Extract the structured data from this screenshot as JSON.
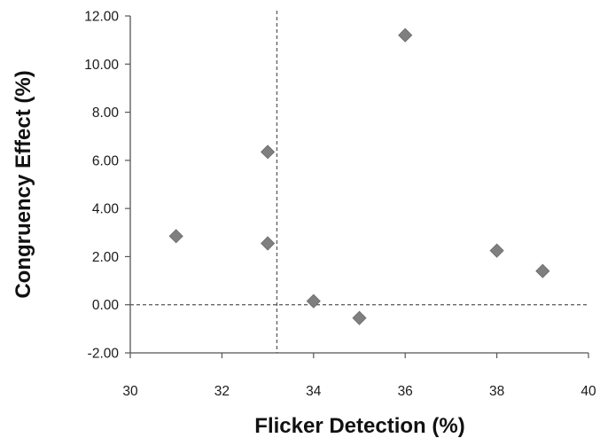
{
  "chart_data": {
    "type": "scatter",
    "xlabel": "Flicker Detection (%)",
    "ylabel": "Congruency Effect (%)",
    "xlim": [
      30,
      40
    ],
    "ylim": [
      -2,
      12
    ],
    "x_ticks": [
      "30",
      "32",
      "34",
      "36",
      "38",
      "40"
    ],
    "y_ticks": [
      "12.00",
      "10.00",
      "8.00",
      "6.00",
      "4.00",
      "2.00",
      "0.00",
      "-2.00"
    ],
    "series": [
      {
        "marker": "diamond",
        "color": "#7f7f7f",
        "points": [
          {
            "x": 31,
            "y": 2.85
          },
          {
            "x": 33,
            "y": 6.35
          },
          {
            "x": 33,
            "y": 2.55
          },
          {
            "x": 34,
            "y": 0.15
          },
          {
            "x": 35,
            "y": -0.55
          },
          {
            "x": 36,
            "y": 11.2
          },
          {
            "x": 38,
            "y": 2.25
          },
          {
            "x": 39,
            "y": 1.4
          }
        ]
      }
    ],
    "reference_lines": [
      {
        "orientation": "vertical",
        "x": 33.2,
        "style": "dashed"
      },
      {
        "orientation": "horizontal",
        "y": 0,
        "style": "dashed"
      }
    ],
    "grid": false,
    "legend": "none"
  }
}
